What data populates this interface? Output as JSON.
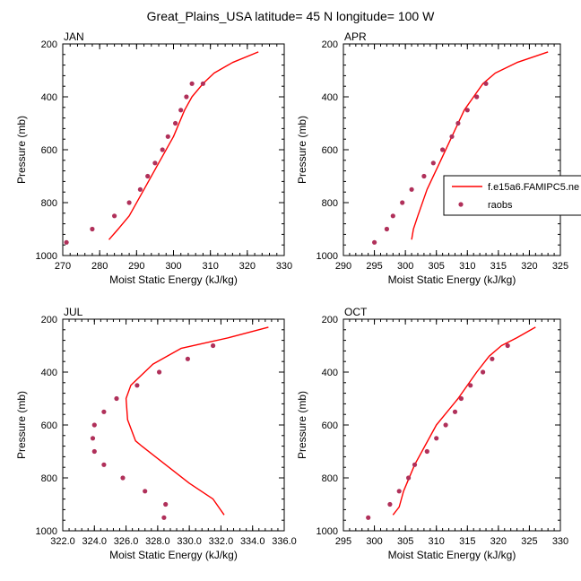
{
  "title": "Great_Plains_USA  latitude= 45 N longitude= 100 W",
  "legend": {
    "model_label": "f.e15a6.FAMIPC5.ne",
    "obs_label": "raobs"
  },
  "colors": {
    "model_line": "#ff0000",
    "obs_dots": "#b0305a"
  },
  "chart_data": [
    {
      "type": "line",
      "panel_label": "JAN",
      "xlabel": "Moist Static Energy (kJ/kg)",
      "ylabel": "Pressure (mb)",
      "xlim": [
        270,
        330
      ],
      "ylim": [
        1000,
        200
      ],
      "xticks": [
        270,
        280,
        290,
        300,
        310,
        320,
        330
      ],
      "xtick_labels": [
        "270",
        "280",
        "290",
        "300",
        "310",
        "320",
        "330"
      ],
      "yticks": [
        200,
        400,
        600,
        800,
        1000
      ],
      "series": [
        {
          "type": "line",
          "x": [
            282.5,
            285,
            288,
            292,
            296,
            300,
            303,
            305,
            308,
            311,
            316,
            323
          ],
          "y": [
            940,
            900,
            850,
            750,
            650,
            550,
            450,
            400,
            350,
            310,
            270,
            230
          ]
        },
        {
          "type": "scatter",
          "x": [
            271,
            278,
            284,
            288,
            291,
            293,
            295,
            297,
            298.5,
            300.5,
            302,
            303.5,
            305,
            308
          ],
          "y": [
            950,
            900,
            850,
            800,
            750,
            700,
            650,
            600,
            550,
            500,
            450,
            400,
            350,
            350
          ]
        }
      ]
    },
    {
      "type": "line",
      "panel_label": "APR",
      "xlabel": "Moist Static Energy (kJ/kg)",
      "ylabel": "Pressure (mb)",
      "xlim": [
        290,
        325
      ],
      "ylim": [
        1000,
        200
      ],
      "xticks": [
        290,
        295,
        300,
        305,
        310,
        315,
        320,
        325
      ],
      "xtick_labels": [
        "290",
        "295",
        "300",
        "305",
        "310",
        "315",
        "320",
        "325"
      ],
      "yticks": [
        200,
        400,
        600,
        800,
        1000
      ],
      "series": [
        {
          "type": "line",
          "x": [
            301,
            301.3,
            302,
            303.5,
            305.5,
            307.5,
            309.5,
            311,
            312.5,
            314.5,
            318,
            323
          ],
          "y": [
            940,
            900,
            850,
            750,
            650,
            550,
            450,
            400,
            350,
            310,
            270,
            230
          ]
        },
        {
          "type": "scatter",
          "x": [
            295,
            297,
            298,
            299.5,
            301,
            303,
            304.5,
            306,
            307.5,
            308.5,
            310,
            311.5,
            313
          ],
          "y": [
            950,
            900,
            850,
            800,
            750,
            700,
            650,
            600,
            550,
            500,
            450,
            400,
            350
          ]
        }
      ]
    },
    {
      "type": "line",
      "panel_label": "JUL",
      "xlabel": "Moist Static Energy (kJ/kg)",
      "ylabel": "Pressure (mb)",
      "xlim": [
        322,
        336
      ],
      "ylim": [
        1000,
        200
      ],
      "xticks": [
        322,
        324,
        326,
        328,
        330,
        332,
        334,
        336
      ],
      "xtick_labels": [
        "322.0",
        "324.0",
        "326.0",
        "328.0",
        "330.0",
        "332.0",
        "334.0",
        "336.0"
      ],
      "yticks": [
        200,
        400,
        600,
        800,
        1000
      ],
      "series": [
        {
          "type": "line",
          "x": [
            332.2,
            331.5,
            330,
            327,
            326.6,
            326.1,
            326,
            326.3,
            327.7,
            329.5,
            332.5,
            335
          ],
          "y": [
            940,
            880,
            820,
            680,
            660,
            580,
            500,
            450,
            370,
            310,
            270,
            230
          ]
        },
        {
          "type": "scatter",
          "x": [
            328.4,
            328.5,
            327.2,
            325.8,
            324.6,
            324,
            323.9,
            324,
            324.6,
            325.4,
            326.7,
            328.1,
            329.9,
            331.5
          ],
          "y": [
            950,
            900,
            850,
            800,
            750,
            700,
            650,
            600,
            550,
            500,
            450,
            400,
            350,
            300
          ]
        }
      ]
    },
    {
      "type": "line",
      "panel_label": "OCT",
      "xlabel": "Moist Static Energy (kJ/kg)",
      "ylabel": "Pressure (mb)",
      "xlim": [
        295,
        330
      ],
      "ylim": [
        1000,
        200
      ],
      "xticks": [
        295,
        300,
        305,
        310,
        315,
        320,
        325,
        330
      ],
      "xtick_labels": [
        "295",
        "300",
        "305",
        "310",
        "315",
        "320",
        "325",
        "330"
      ],
      "yticks": [
        200,
        400,
        600,
        800,
        1000
      ],
      "series": [
        {
          "type": "line",
          "x": [
            303,
            304,
            304.7,
            306.5,
            310,
            313.5,
            316.5,
            318.5,
            320.5,
            323,
            326
          ],
          "y": [
            940,
            910,
            850,
            750,
            600,
            500,
            400,
            340,
            300,
            270,
            230
          ]
        },
        {
          "type": "scatter",
          "x": [
            299,
            302.5,
            304,
            305.5,
            306.5,
            308.5,
            310,
            311.5,
            313,
            314,
            315.5,
            317.5,
            319,
            321.5
          ],
          "y": [
            950,
            900,
            850,
            800,
            750,
            700,
            650,
            600,
            550,
            500,
            450,
            400,
            350,
            300
          ]
        }
      ]
    }
  ]
}
